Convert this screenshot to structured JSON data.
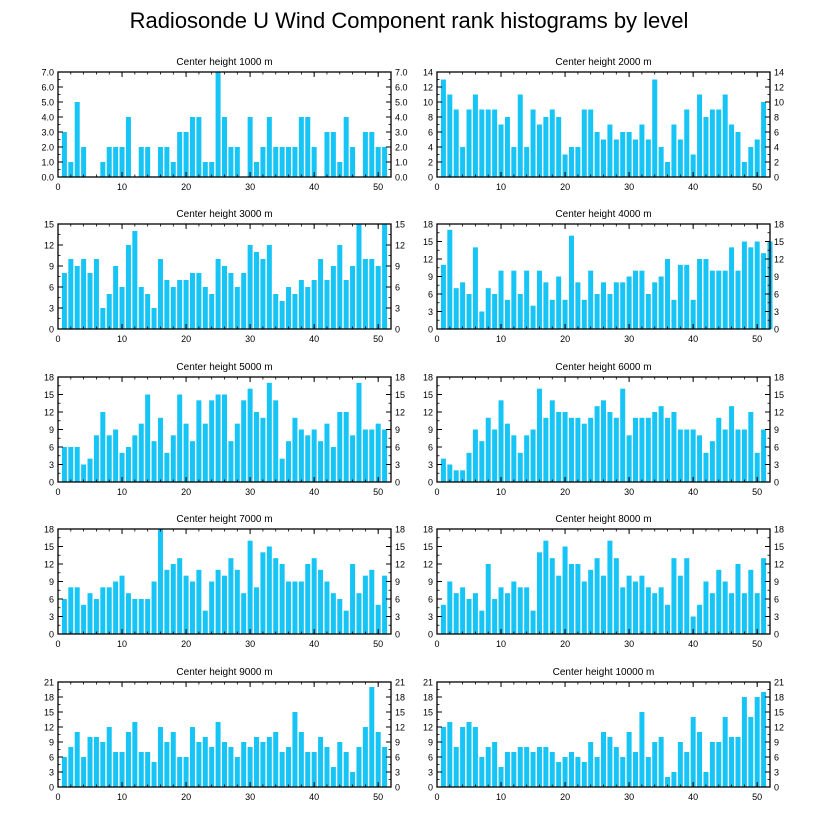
{
  "title": "Radiosonde U Wind Component rank histograms by level",
  "colors": {
    "bar": "#16c4f5",
    "axis": "#000000",
    "background": "#ffffff"
  },
  "chart_data": [
    {
      "type": "bar",
      "title": "Center height 1000 m",
      "xlabel": "",
      "ylabel": "",
      "xlim": [
        0,
        52
      ],
      "ylim": [
        0,
        7
      ],
      "yticks": [
        "0.0",
        "1.0",
        "2.0",
        "3.0",
        "4.0",
        "5.0",
        "6.0",
        "7.0"
      ],
      "xticks": [
        "0",
        "10",
        "20",
        "30",
        "40",
        "50"
      ],
      "values": [
        3,
        1,
        5,
        2,
        0,
        0,
        1,
        2,
        2,
        2,
        4,
        0,
        2,
        2,
        0,
        2,
        2,
        1,
        3,
        3,
        4,
        4,
        1,
        1,
        7,
        4,
        2,
        2,
        0,
        4,
        1,
        2,
        4,
        2,
        2,
        2,
        2,
        4,
        4,
        2,
        0,
        3,
        3,
        1,
        4,
        2,
        0,
        3,
        3,
        2,
        2
      ]
    },
    {
      "type": "bar",
      "title": "Center height 2000 m",
      "xlabel": "",
      "ylabel": "",
      "xlim": [
        0,
        52
      ],
      "ylim": [
        0,
        14
      ],
      "yticks": [
        "0",
        "2",
        "4",
        "6",
        "8",
        "10",
        "12",
        "14"
      ],
      "xticks": [
        "0",
        "10",
        "20",
        "30",
        "40",
        "50"
      ],
      "values": [
        13,
        11,
        9,
        4,
        9,
        11,
        9,
        9,
        9,
        7,
        8,
        4,
        11,
        4,
        9,
        7,
        8,
        9,
        8,
        3,
        4,
        4,
        9,
        9,
        6,
        5,
        7,
        5,
        6,
        6,
        5,
        7,
        5,
        13,
        4,
        2,
        7,
        5,
        9,
        3,
        11,
        8,
        9,
        9,
        11,
        7,
        6,
        2,
        4,
        5,
        10
      ]
    },
    {
      "type": "bar",
      "title": "Center height 3000 m",
      "xlabel": "",
      "ylabel": "",
      "xlim": [
        0,
        52
      ],
      "ylim": [
        0,
        15
      ],
      "yticks": [
        "0",
        "3",
        "6",
        "9",
        "12",
        "15"
      ],
      "xticks": [
        "0",
        "10",
        "20",
        "30",
        "40",
        "50"
      ],
      "values": [
        8,
        10,
        9,
        10,
        8,
        10,
        3,
        5,
        9,
        6,
        12,
        14,
        6,
        5,
        3,
        10,
        7,
        6,
        7,
        7,
        8,
        8,
        6,
        5,
        10,
        9,
        8,
        6,
        8,
        12,
        11,
        10,
        12,
        5,
        4,
        6,
        5,
        7,
        6,
        7,
        10,
        7,
        9,
        12,
        7,
        9,
        15,
        10,
        10,
        9,
        15
      ]
    },
    {
      "type": "bar",
      "title": "Center height 4000 m",
      "xlabel": "",
      "ylabel": "",
      "xlim": [
        0,
        52
      ],
      "ylim": [
        0,
        18
      ],
      "yticks": [
        "0",
        "3",
        "6",
        "9",
        "12",
        "15",
        "18"
      ],
      "xticks": [
        "0",
        "10",
        "20",
        "30",
        "40",
        "50"
      ],
      "values": [
        11,
        17,
        7,
        8,
        6,
        14,
        3,
        7,
        6,
        10,
        5,
        10,
        6,
        10,
        4,
        10,
        8,
        5,
        9,
        5,
        16,
        8,
        5,
        10,
        6,
        8,
        6,
        8,
        8,
        9,
        10,
        10,
        6,
        8,
        9,
        12,
        5,
        11,
        11,
        5,
        12,
        12,
        10,
        10,
        10,
        14,
        10,
        15,
        14,
        15,
        13,
        15
      ]
    },
    {
      "type": "bar",
      "title": "Center height 5000 m",
      "xlabel": "",
      "ylabel": "",
      "xlim": [
        0,
        52
      ],
      "ylim": [
        0,
        18
      ],
      "yticks": [
        "0",
        "3",
        "6",
        "9",
        "12",
        "15",
        "18"
      ],
      "xticks": [
        "0",
        "10",
        "20",
        "30",
        "40",
        "50"
      ],
      "values": [
        6,
        6,
        6,
        3,
        4,
        8,
        12,
        8,
        9,
        5,
        6,
        8,
        10,
        15,
        7,
        11,
        5,
        8,
        15,
        10,
        7,
        14,
        10,
        14,
        15,
        15,
        7,
        10,
        14,
        16,
        12,
        11,
        17,
        14,
        4,
        7,
        11,
        9,
        8,
        9,
        7,
        10,
        6,
        12,
        12,
        8,
        17,
        9,
        9,
        10,
        9
      ]
    },
    {
      "type": "bar",
      "title": "Center height 6000 m",
      "xlabel": "",
      "ylabel": "",
      "xlim": [
        0,
        52
      ],
      "ylim": [
        0,
        18
      ],
      "yticks": [
        "0",
        "3",
        "6",
        "9",
        "12",
        "15",
        "18"
      ],
      "xticks": [
        "0",
        "10",
        "20",
        "30",
        "40",
        "50"
      ],
      "values": [
        4,
        3,
        2,
        2,
        5,
        9,
        7,
        11,
        9,
        14,
        10,
        8,
        5,
        8,
        9,
        16,
        11,
        14,
        12,
        12,
        11,
        11,
        10,
        11,
        13,
        14,
        12,
        11,
        16,
        8,
        11,
        11,
        11,
        12,
        13,
        11,
        12,
        9,
        9,
        9,
        8,
        5,
        7,
        11,
        9,
        13,
        9,
        9,
        12,
        5,
        9
      ]
    },
    {
      "type": "bar",
      "title": "Center height 7000 m",
      "xlabel": "",
      "ylabel": "",
      "xlim": [
        0,
        52
      ],
      "ylim": [
        0,
        18
      ],
      "yticks": [
        "0",
        "3",
        "6",
        "9",
        "12",
        "15",
        "18"
      ],
      "xticks": [
        "0",
        "10",
        "20",
        "30",
        "40",
        "50"
      ],
      "values": [
        6,
        8,
        8,
        5,
        7,
        6,
        8,
        8,
        9,
        10,
        7,
        6,
        6,
        6,
        9,
        18,
        11,
        12,
        13,
        10,
        9,
        11,
        4,
        9,
        11,
        10,
        13,
        11,
        7,
        16,
        8,
        14,
        15,
        13,
        12,
        9,
        9,
        9,
        12,
        13,
        11,
        9,
        7,
        6,
        4,
        12,
        7,
        10,
        11,
        5,
        10
      ]
    },
    {
      "type": "bar",
      "title": "Center height 8000 m",
      "xlabel": "",
      "ylabel": "",
      "xlim": [
        0,
        52
      ],
      "ylim": [
        0,
        18
      ],
      "yticks": [
        "0",
        "3",
        "6",
        "9",
        "12",
        "15",
        "18"
      ],
      "xticks": [
        "0",
        "10",
        "20",
        "30",
        "40",
        "50"
      ],
      "values": [
        5,
        9,
        7,
        8,
        6,
        7,
        4,
        12,
        6,
        8,
        7,
        9,
        8,
        8,
        4,
        14,
        16,
        13,
        10,
        15,
        12,
        12,
        9,
        11,
        13,
        10,
        16,
        13,
        8,
        10,
        9,
        10,
        8,
        7,
        8,
        5,
        13,
        10,
        13,
        3,
        5,
        9,
        7,
        11,
        9,
        7,
        12,
        7,
        11,
        7,
        13
      ]
    },
    {
      "type": "bar",
      "title": "Center height 9000 m",
      "xlabel": "",
      "ylabel": "",
      "xlim": [
        0,
        52
      ],
      "ylim": [
        0,
        21
      ],
      "yticks": [
        "0",
        "3",
        "6",
        "9",
        "12",
        "15",
        "18",
        "21"
      ],
      "xticks": [
        "0",
        "10",
        "20",
        "30",
        "40",
        "50"
      ],
      "values": [
        6,
        8,
        11,
        6,
        10,
        10,
        9,
        12,
        7,
        7,
        11,
        13,
        7,
        7,
        5,
        12,
        9,
        11,
        6,
        6,
        12,
        9,
        10,
        8,
        13,
        9,
        8,
        6,
        9,
        8,
        10,
        9,
        10,
        11,
        7,
        8,
        15,
        11,
        7,
        7,
        10,
        8,
        4,
        9,
        7,
        3,
        8,
        12,
        20,
        11,
        8
      ]
    },
    {
      "type": "bar",
      "title": "Center height 10000 m",
      "xlabel": "",
      "ylabel": "",
      "xlim": [
        0,
        52
      ],
      "ylim": [
        0,
        21
      ],
      "yticks": [
        "0",
        "3",
        "6",
        "9",
        "12",
        "15",
        "18",
        "21"
      ],
      "xticks": [
        "0",
        "10",
        "20",
        "30",
        "40",
        "50"
      ],
      "values": [
        12,
        13,
        8,
        12,
        13,
        12,
        6,
        8,
        9,
        4,
        7,
        7,
        8,
        8,
        7,
        8,
        8,
        7,
        5,
        6,
        7,
        6,
        5,
        9,
        6,
        11,
        10,
        8,
        6,
        11,
        7,
        15,
        6,
        9,
        10,
        2,
        3,
        9,
        7,
        14,
        11,
        3,
        9,
        9,
        14,
        10,
        10,
        18,
        14,
        18,
        19
      ]
    }
  ]
}
